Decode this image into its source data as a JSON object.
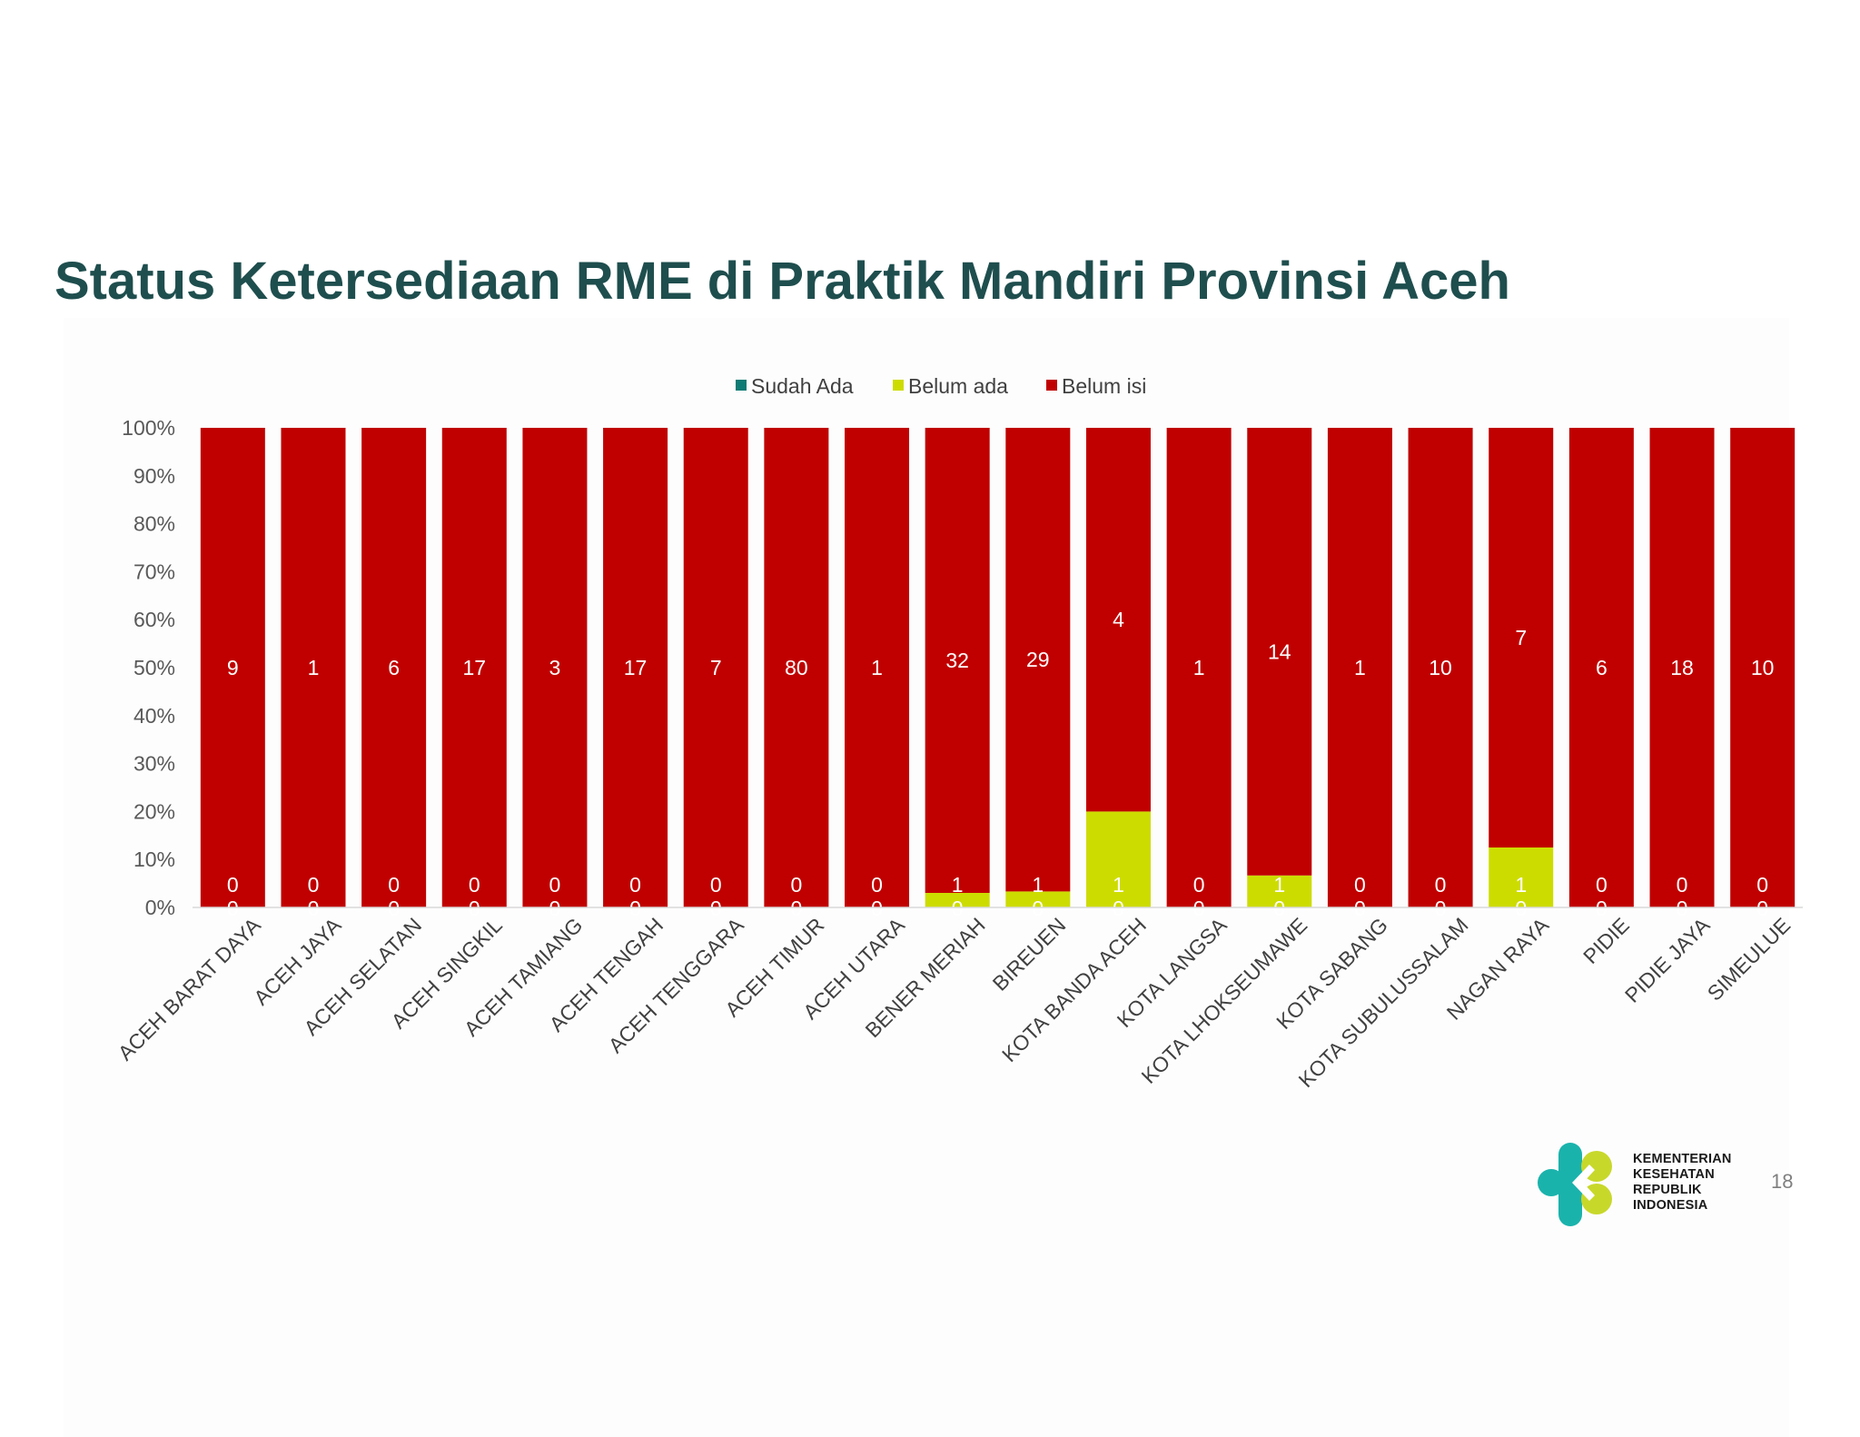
{
  "slide": {
    "title": "Status Ketersediaan RME di Praktik Mandiri Provinsi Aceh",
    "page_number": "18"
  },
  "logo": {
    "lines": [
      "KEMENTERIAN",
      "KESEHATAN",
      "REPUBLIK",
      "INDONESIA"
    ],
    "colors": {
      "teal": "#1ab3ac",
      "lime": "#c8d82b"
    }
  },
  "chart_data": {
    "type": "bar",
    "stacked": "percent",
    "categories": [
      "ACEH BARAT DAYA",
      "ACEH JAYA",
      "ACEH SELATAN",
      "ACEH SINGKIL",
      "ACEH TAMIANG",
      "ACEH TENGAH",
      "ACEH TENGGARA",
      "ACEH TIMUR",
      "ACEH UTARA",
      "BENER MERIAH",
      "BIREUEN",
      "KOTA BANDA ACEH",
      "KOTA LANGSA",
      "KOTA LHOKSEUMAWE",
      "KOTA SABANG",
      "KOTA SUBULUSSALAM",
      "NAGAN RAYA",
      "PIDIE",
      "PIDIE JAYA",
      "SIMEULUE"
    ],
    "series": [
      {
        "name": "Sudah Ada",
        "color": "#0e7b74",
        "values": [
          0,
          0,
          0,
          0,
          0,
          0,
          0,
          0,
          0,
          0,
          0,
          0,
          0,
          0,
          0,
          0,
          0,
          0,
          0,
          0
        ]
      },
      {
        "name": "Belum ada",
        "color": "#cddc00",
        "values": [
          0,
          0,
          0,
          0,
          0,
          0,
          0,
          0,
          0,
          1,
          1,
          1,
          0,
          1,
          0,
          0,
          1,
          0,
          0,
          0
        ]
      },
      {
        "name": "Belum isi",
        "color": "#c00000",
        "values": [
          9,
          1,
          6,
          17,
          3,
          17,
          7,
          80,
          1,
          32,
          29,
          4,
          1,
          14,
          1,
          10,
          7,
          6,
          18,
          10
        ]
      }
    ],
    "yticks": [
      "0%",
      "10%",
      "20%",
      "30%",
      "40%",
      "50%",
      "60%",
      "70%",
      "80%",
      "90%",
      "100%"
    ],
    "ylim": [
      0,
      100
    ],
    "legend": "top-center",
    "grid": false
  }
}
